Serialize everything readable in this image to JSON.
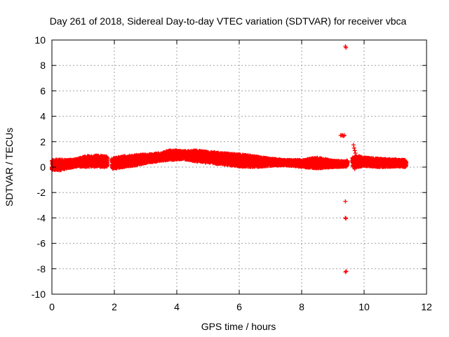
{
  "chart_data": {
    "type": "scatter",
    "title": "Day 261 of 2018, Sidereal Day-to-day VTEC variation (SDTVAR) for receiver vbca",
    "xlabel": "GPS time / hours",
    "ylabel": "SDTVAR / TECUs",
    "xlim": [
      0,
      12
    ],
    "ylim": [
      -10,
      10
    ],
    "xticks": [
      0,
      2,
      4,
      6,
      8,
      10,
      12
    ],
    "yticks": [
      -10,
      -8,
      -6,
      -4,
      -2,
      0,
      2,
      4,
      6,
      8,
      10
    ],
    "xtick_labels": [
      "0",
      "2",
      "4",
      "6",
      "8",
      "10",
      "12"
    ],
    "ytick_labels": [
      "-10",
      "-8",
      "-6",
      "-4",
      "-2",
      "0",
      "2",
      "4",
      "6",
      "8",
      "10"
    ],
    "grid": true,
    "marker": "+",
    "color": "#ff0000",
    "series": [
      {
        "name": "vbca",
        "band": [
          {
            "x": 0.0,
            "lo": -0.2,
            "hi": 0.55
          },
          {
            "x": 0.25,
            "lo": -0.25,
            "hi": 0.6
          },
          {
            "x": 0.5,
            "lo": -0.1,
            "hi": 0.55
          },
          {
            "x": 0.8,
            "lo": 0.05,
            "hi": 0.65
          },
          {
            "x": 1.1,
            "lo": 0.0,
            "hi": 0.85
          },
          {
            "x": 1.4,
            "lo": 0.05,
            "hi": 0.9
          },
          {
            "x": 1.75,
            "lo": 0.0,
            "hi": 0.85
          },
          {
            "x": 1.95,
            "lo": -0.15,
            "hi": 0.7
          },
          {
            "x": 2.3,
            "lo": 0.0,
            "hi": 0.85
          },
          {
            "x": 2.7,
            "lo": 0.15,
            "hi": 0.95
          },
          {
            "x": 3.1,
            "lo": 0.35,
            "hi": 1.0
          },
          {
            "x": 3.5,
            "lo": 0.5,
            "hi": 1.1
          },
          {
            "x": 3.8,
            "lo": 0.55,
            "hi": 1.35
          },
          {
            "x": 4.2,
            "lo": 0.65,
            "hi": 1.25
          },
          {
            "x": 4.6,
            "lo": 0.45,
            "hi": 1.3
          },
          {
            "x": 5.0,
            "lo": 0.35,
            "hi": 1.2
          },
          {
            "x": 5.5,
            "lo": 0.2,
            "hi": 1.1
          },
          {
            "x": 6.0,
            "lo": 0.05,
            "hi": 1.0
          },
          {
            "x": 6.5,
            "lo": 0.0,
            "hi": 0.85
          },
          {
            "x": 7.0,
            "lo": 0.1,
            "hi": 0.65
          },
          {
            "x": 7.5,
            "lo": 0.15,
            "hi": 0.55
          },
          {
            "x": 8.0,
            "lo": 0.0,
            "hi": 0.55
          },
          {
            "x": 8.5,
            "lo": -0.1,
            "hi": 0.75
          },
          {
            "x": 9.0,
            "lo": 0.0,
            "hi": 0.5
          },
          {
            "x": 9.4,
            "lo": 0.05,
            "hi": 0.45
          },
          {
            "x": 9.75,
            "lo": 0.0,
            "hi": 0.9
          },
          {
            "x": 10.0,
            "lo": 0.1,
            "hi": 0.75
          },
          {
            "x": 10.5,
            "lo": 0.0,
            "hi": 0.65
          },
          {
            "x": 11.0,
            "lo": 0.05,
            "hi": 0.6
          },
          {
            "x": 11.35,
            "lo": 0.0,
            "hi": 0.55
          }
        ],
        "gaps": [
          [
            1.78,
            1.92
          ],
          [
            9.47,
            9.62
          ]
        ],
        "extra_points": [
          {
            "x": 9.25,
            "y": 2.5
          },
          {
            "x": 9.28,
            "y": 2.5
          },
          {
            "x": 9.31,
            "y": 2.5
          },
          {
            "x": 9.34,
            "y": 2.45
          },
          {
            "x": 9.37,
            "y": 2.5
          },
          {
            "x": 9.4,
            "y": 9.5
          },
          {
            "x": 9.42,
            "y": 9.4
          },
          {
            "x": 9.4,
            "y": -2.7
          },
          {
            "x": 9.4,
            "y": -4.0
          },
          {
            "x": 9.42,
            "y": -4.05
          },
          {
            "x": 9.4,
            "y": -8.25
          },
          {
            "x": 9.43,
            "y": -8.2
          },
          {
            "x": 9.66,
            "y": 1.75
          },
          {
            "x": 9.68,
            "y": 1.5
          },
          {
            "x": 9.7,
            "y": 1.3
          },
          {
            "x": 9.72,
            "y": 1.1
          },
          {
            "x": 9.66,
            "y": 0.3
          },
          {
            "x": 9.68,
            "y": 0.0
          },
          {
            "x": 9.7,
            "y": -0.15
          }
        ]
      }
    ]
  }
}
